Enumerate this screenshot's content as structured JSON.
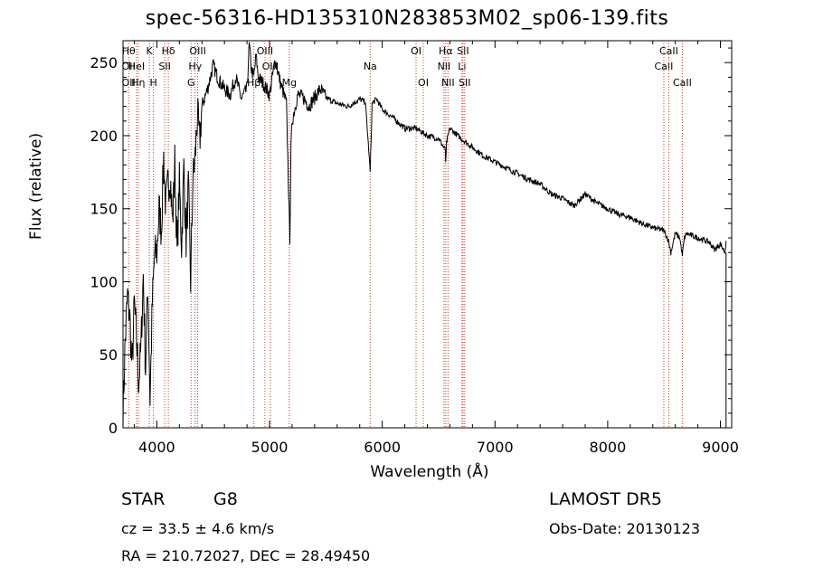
{
  "chart_data": {
    "type": "line",
    "title": "spec-56316-HD135310N283853M02_sp06-139.fits",
    "xlabel": "Wavelength (Å)",
    "ylabel": "Flux (relative)",
    "xlim": [
      3700,
      9100
    ],
    "ylim": [
      0,
      265
    ],
    "xticks": [
      4000,
      5000,
      6000,
      7000,
      8000,
      9000
    ],
    "yticks": [
      0,
      50,
      100,
      150,
      200,
      250
    ],
    "spectrum": {
      "x": [
        3700,
        3720,
        3740,
        3760,
        3780,
        3800,
        3820,
        3840,
        3860,
        3880,
        3900,
        3920,
        3940,
        3960,
        3980,
        4000,
        4020,
        4040,
        4060,
        4080,
        4100,
        4120,
        4140,
        4160,
        4180,
        4200,
        4220,
        4240,
        4260,
        4280,
        4300,
        4320,
        4340,
        4360,
        4380,
        4400,
        4450,
        4500,
        4550,
        4600,
        4650,
        4700,
        4750,
        4800,
        4820,
        4840,
        4860,
        4880,
        4900,
        4950,
        5000,
        5050,
        5100,
        5150,
        5170,
        5180,
        5190,
        5200,
        5250,
        5300,
        5350,
        5400,
        5450,
        5500,
        5600,
        5700,
        5800,
        5850,
        5880,
        5893,
        5910,
        5950,
        6000,
        6100,
        6200,
        6300,
        6400,
        6500,
        6560,
        6563,
        6570,
        6600,
        6700,
        6800,
        6900,
        7000,
        7100,
        7200,
        7300,
        7400,
        7500,
        7600,
        7700,
        7800,
        7900,
        8000,
        8100,
        8200,
        8300,
        8400,
        8500,
        8540,
        8560,
        8600,
        8640,
        8662,
        8680,
        8700,
        8800,
        8900,
        8950,
        9000,
        9040,
        9050
      ],
      "y": [
        10,
        60,
        90,
        75,
        40,
        85,
        60,
        30,
        55,
        105,
        40,
        100,
        20,
        85,
        118,
        120,
        150,
        135,
        185,
        150,
        168,
        172,
        140,
        182,
        120,
        168,
        125,
        178,
        128,
        165,
        100,
        170,
        185,
        215,
        195,
        220,
        232,
        248,
        238,
        232,
        228,
        240,
        225,
        232,
        262,
        245,
        240,
        255,
        240,
        235,
        228,
        252,
        235,
        222,
        160,
        130,
        190,
        210,
        228,
        226,
        220,
        226,
        232,
        226,
        222,
        220,
        225,
        223,
        190,
        175,
        222,
        225,
        218,
        212,
        205,
        205,
        200,
        198,
        190,
        180,
        195,
        205,
        198,
        192,
        186,
        182,
        178,
        174,
        170,
        167,
        160,
        157,
        152,
        160,
        154,
        150,
        146,
        144,
        140,
        137,
        135,
        128,
        120,
        133,
        130,
        118,
        130,
        133,
        130,
        127,
        122,
        126,
        120,
        128
      ]
    },
    "line_colors": {
      "spectrum": "#000000",
      "markers": "#c0392b"
    },
    "lines": [
      {
        "w": 3750,
        "labels": [
          {
            "t": "Hθ",
            "row": 0
          },
          {
            "t": "OII",
            "row": 1
          },
          {
            "t": "OII",
            "row": 2
          }
        ]
      },
      {
        "w": 3820,
        "labels": [
          {
            "t": "HeI",
            "row": 1
          }
        ]
      },
      {
        "w": 3835,
        "labels": [
          {
            "t": "Hη",
            "row": 2
          }
        ]
      },
      {
        "w": 3934,
        "labels": [
          {
            "t": "K",
            "row": 0
          }
        ]
      },
      {
        "w": 3970,
        "labels": [
          {
            "t": "H",
            "row": 2
          }
        ]
      },
      {
        "w": 4070,
        "labels": [
          {
            "t": "SII",
            "row": 1
          }
        ]
      },
      {
        "w": 4102,
        "labels": [
          {
            "t": "Hδ",
            "row": 0
          }
        ]
      },
      {
        "w": 4304,
        "labels": [
          {
            "t": "G",
            "row": 2
          }
        ]
      },
      {
        "w": 4340,
        "labels": [
          {
            "t": "Hγ",
            "row": 1
          }
        ]
      },
      {
        "w": 4363,
        "labels": [
          {
            "t": "OIII",
            "row": 0
          }
        ]
      },
      {
        "w": 4861,
        "labels": [
          {
            "t": "Hβ",
            "row": 2
          }
        ]
      },
      {
        "w": 4959,
        "labels": [
          {
            "t": "OIII",
            "row": 0
          }
        ]
      },
      {
        "w": 5007,
        "labels": [
          {
            "t": "OIII",
            "row": 1
          }
        ]
      },
      {
        "w": 5175,
        "labels": [
          {
            "t": "Mg",
            "row": 2
          }
        ]
      },
      {
        "w": 5893,
        "labels": [
          {
            "t": "Na",
            "row": 1
          }
        ]
      },
      {
        "w": 6300,
        "labels": [
          {
            "t": "OI",
            "row": 0
          }
        ]
      },
      {
        "w": 6364,
        "labels": [
          {
            "t": "OI",
            "row": 2
          }
        ]
      },
      {
        "w": 6548,
        "labels": [
          {
            "t": "NII",
            "row": 1
          }
        ]
      },
      {
        "w": 6563,
        "labels": [
          {
            "t": "Hα",
            "row": 0
          }
        ]
      },
      {
        "w": 6583,
        "labels": [
          {
            "t": "NII",
            "row": 2
          }
        ]
      },
      {
        "w": 6708,
        "labels": [
          {
            "t": "Li",
            "row": 1
          }
        ]
      },
      {
        "w": 6716,
        "labels": [
          {
            "t": "SII",
            "row": 0
          }
        ]
      },
      {
        "w": 6731,
        "labels": [
          {
            "t": "SII",
            "row": 2
          }
        ]
      },
      {
        "w": 8498,
        "labels": [
          {
            "t": "CaII",
            "row": 1
          }
        ]
      },
      {
        "w": 8542,
        "labels": [
          {
            "t": "CaII",
            "row": 0
          }
        ]
      },
      {
        "w": 8662,
        "labels": [
          {
            "t": "CaII",
            "row": 2
          }
        ]
      }
    ]
  },
  "info": {
    "class": "STAR",
    "subclass": "G8",
    "survey": "LAMOST DR5",
    "cz": "cz = 33.5 ± 4.6 km/s",
    "obsdate": "Obs-Date: 20130123",
    "radec": "RA = 210.72027, DEC =  28.49450"
  }
}
